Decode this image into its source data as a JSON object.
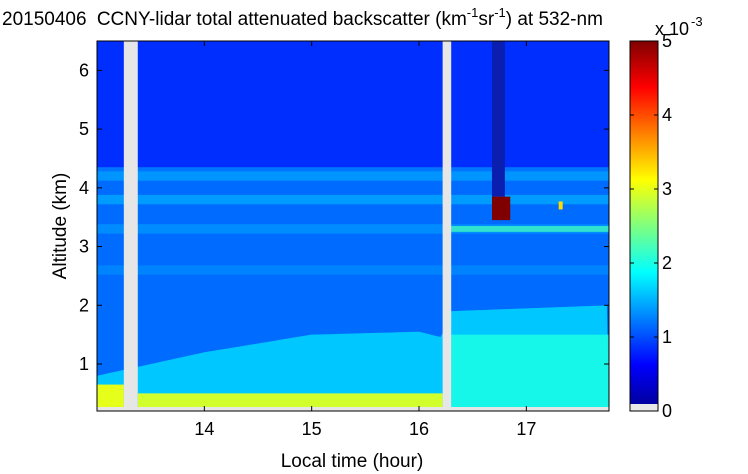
{
  "chart_data": {
    "type": "heatmap",
    "title_date": "20150406",
    "title_main": "CCNY-lidar total attenuated backscatter (km",
    "title_sup1": "-1",
    "title_mid": "sr",
    "title_sup2": "-1",
    "title_end": ") at 532-nm",
    "xlabel": "Local time (hour)",
    "ylabel": "Altitude (km)",
    "xlim": [
      13.0,
      17.77
    ],
    "ylim": [
      0.2,
      6.5
    ],
    "x_ticks": [
      14,
      15,
      16,
      17
    ],
    "y_ticks": [
      1,
      2,
      3,
      4,
      5,
      6
    ],
    "colorbar": {
      "range": [
        0,
        5
      ],
      "ticks": [
        0,
        1,
        2,
        3,
        4,
        5
      ],
      "scale_label_base": "x 10",
      "scale_label_exp": "-3",
      "colormap": "jet"
    },
    "data_gaps": [
      {
        "x_start": 13.25,
        "x_end": 13.38
      },
      {
        "x_start": 16.22,
        "x_end": 16.3
      }
    ],
    "surface_gap_top_km": 0.2,
    "features": {
      "boundary_layer": {
        "segments": [
          {
            "x_start": 13.0,
            "x_end": 13.25,
            "top_km": 0.65,
            "value": 3.0
          },
          {
            "x_start": 13.38,
            "x_end": 16.22,
            "top_km": 0.5,
            "value": 2.9
          }
        ],
        "aerosol_layer_top_km": [
          {
            "x": 13.0,
            "y": 0.8
          },
          {
            "x": 14.0,
            "y": 1.2
          },
          {
            "x": 15.0,
            "y": 1.5
          },
          {
            "x": 16.0,
            "y": 1.55
          },
          {
            "x": 16.22,
            "y": 1.45
          },
          {
            "x": 16.3,
            "y": 1.9
          },
          {
            "x": 17.77,
            "y": 2.0
          }
        ]
      },
      "layers": [
        {
          "y": 2.6,
          "value": 1.3
        },
        {
          "y": 3.3,
          "value": 1.35
        },
        {
          "y": 3.8,
          "value": 1.45
        },
        {
          "y": 4.2,
          "value": 1.4
        }
      ],
      "cloud": {
        "x_start": 16.68,
        "x_end": 16.85,
        "y_start": 3.45,
        "y_end": 3.85,
        "value": 5.0,
        "shadow": {
          "x_start": 16.68,
          "x_end": 16.8,
          "y_start": 3.85,
          "y_end": 6.5,
          "value": 0.0
        }
      },
      "small_cloud": {
        "x": 17.32,
        "y": 3.7,
        "value": 3.3
      },
      "thin_layer_after_gap": {
        "x_start": 16.3,
        "x_end": 17.77,
        "y": 3.3,
        "value": 2.2
      }
    }
  }
}
